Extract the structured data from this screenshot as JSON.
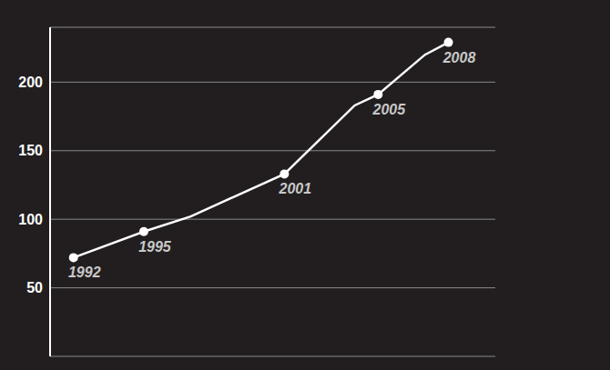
{
  "chart_data": {
    "type": "line",
    "x": [
      1992,
      1995,
      1997,
      2001,
      2004,
      2005,
      2007,
      2008
    ],
    "values": [
      72,
      91,
      102,
      133,
      183,
      191,
      220,
      229
    ],
    "point_labels": [
      "1992",
      "1995",
      null,
      "2001",
      null,
      "2005",
      null,
      "2008"
    ],
    "color": "#ffffff",
    "marker": "circle",
    "xlim": [
      1991,
      2010
    ],
    "ylim": [
      0,
      240
    ],
    "yticks": [
      50,
      100,
      150,
      200
    ],
    "grid": true,
    "tick_labels": "y"
  }
}
